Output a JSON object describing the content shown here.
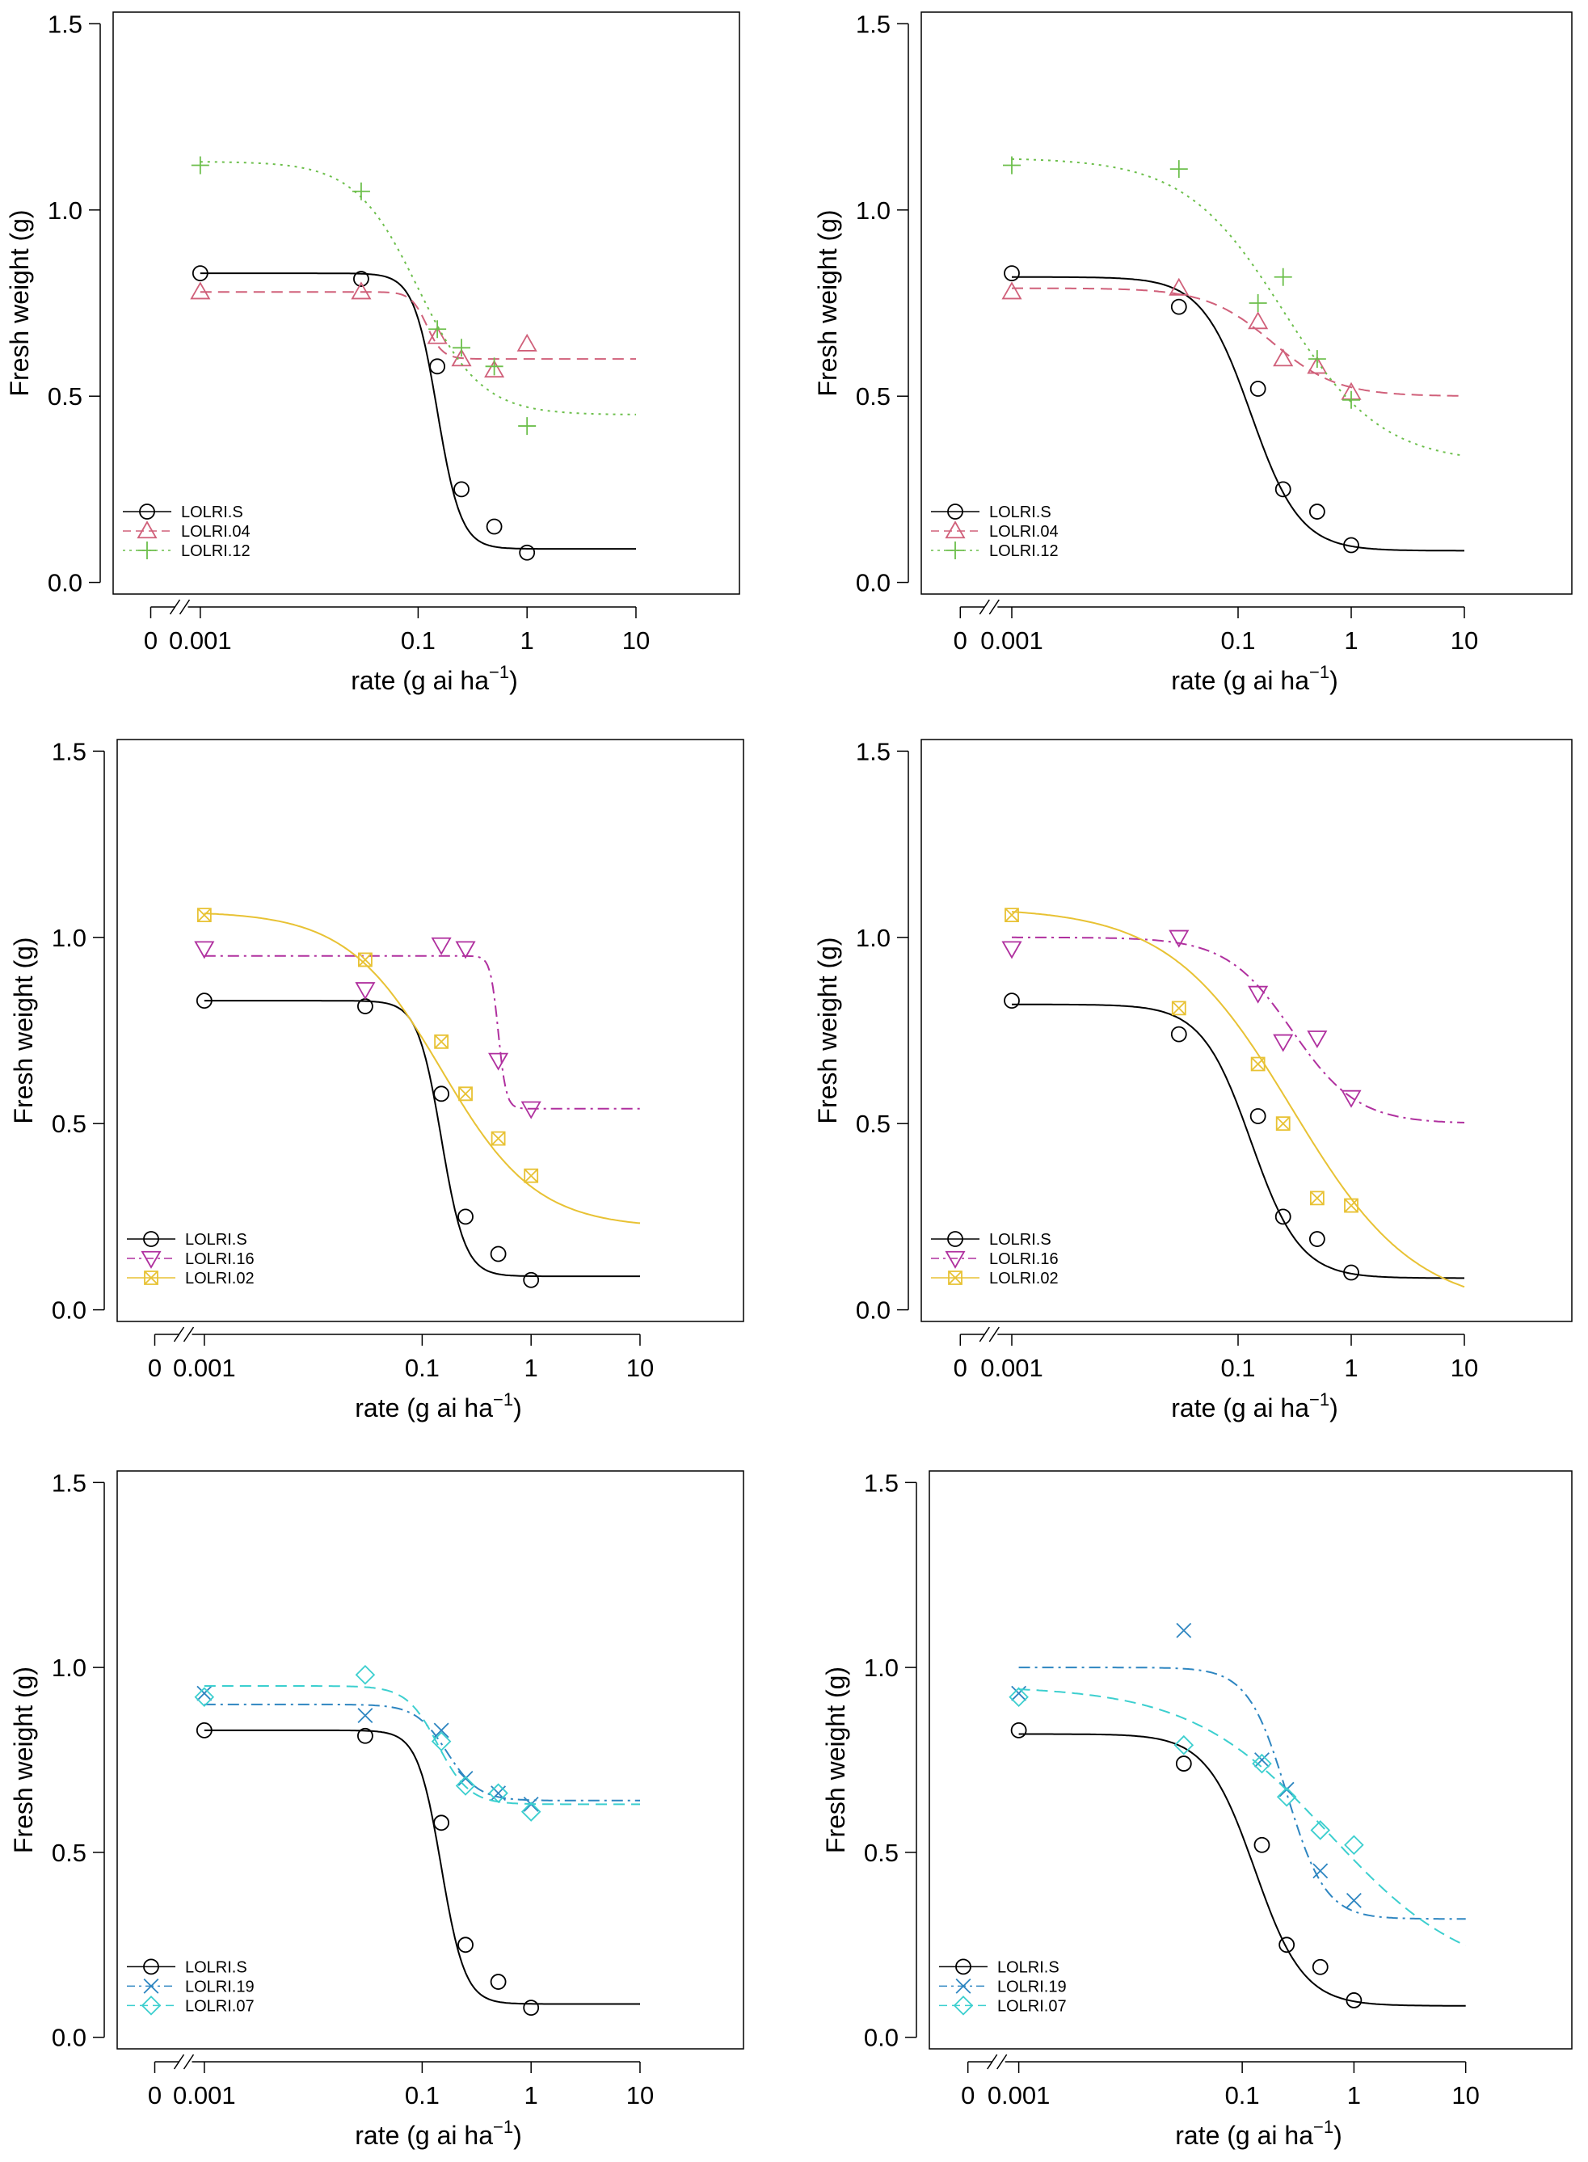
{
  "chart_data": [
    {
      "type": "line",
      "panel": "top-left",
      "xlabel": "rate (g ai ha",
      "xlabel_sup": "−1",
      "xlabel_close": ")",
      "ylabel": "Fresh weight (g)",
      "x_scale": "log (with axis break to 0)",
      "x_ticks": [
        "0",
        "0.001",
        "0.1",
        "1",
        "10"
      ],
      "y_ticks": [
        "0.0",
        "0.5",
        "1.0",
        "1.5"
      ],
      "ylim": [
        0,
        1.5
      ],
      "legend_position": "bottom-left",
      "series": [
        {
          "name": "LOLRI.S",
          "color": "#000000",
          "marker": "circle",
          "line": "solid",
          "x": [
            0.001,
            0.03,
            0.15,
            0.25,
            0.5,
            1
          ],
          "y": [
            0.83,
            0.815,
            0.58,
            0.25,
            0.15,
            0.08
          ],
          "fit": {
            "c": 0.09,
            "d": 0.83,
            "b": 4.0,
            "e": 0.15
          }
        },
        {
          "name": "LOLRI.04",
          "color": "#d0607a",
          "marker": "triangle",
          "line": "dashed",
          "x": [
            0.001,
            0.03,
            0.15,
            0.25,
            0.5,
            1
          ],
          "y": [
            0.78,
            0.78,
            0.66,
            0.6,
            0.57,
            0.64
          ],
          "fit": {
            "c": 0.6,
            "d": 0.78,
            "b": 6.0,
            "e": 0.12
          }
        },
        {
          "name": "LOLRI.12",
          "color": "#6cbf4b",
          "marker": "plus",
          "line": "dotted",
          "x": [
            0.001,
            0.03,
            0.15,
            0.25,
            0.5,
            1
          ],
          "y": [
            1.12,
            1.05,
            0.68,
            0.63,
            0.58,
            0.42
          ],
          "fit": {
            "c": 0.45,
            "d": 1.13,
            "b": 1.5,
            "e": 0.1
          }
        }
      ]
    },
    {
      "type": "line",
      "panel": "top-right",
      "xlabel": "rate (g ai ha",
      "xlabel_sup": "−1",
      "xlabel_close": ")",
      "ylabel": "Fresh weight (g)",
      "x_scale": "log (with axis break to 0)",
      "x_ticks": [
        "0",
        "0.001",
        "0.1",
        "1",
        "10"
      ],
      "y_ticks": [
        "0.0",
        "0.5",
        "1.0",
        "1.5"
      ],
      "ylim": [
        0,
        1.5
      ],
      "legend_position": "bottom-left",
      "series": [
        {
          "name": "LOLRI.S",
          "color": "#000000",
          "marker": "circle",
          "line": "solid",
          "x": [
            0.001,
            0.03,
            0.15,
            0.25,
            0.5,
            1
          ],
          "y": [
            0.83,
            0.74,
            0.52,
            0.25,
            0.19,
            0.1
          ],
          "fit": {
            "c": 0.085,
            "d": 0.82,
            "b": 2.0,
            "e": 0.13
          }
        },
        {
          "name": "LOLRI.04",
          "color": "#d0607a",
          "marker": "triangle",
          "line": "dashed",
          "x": [
            0.001,
            0.03,
            0.15,
            0.25,
            0.5,
            1
          ],
          "y": [
            0.78,
            0.79,
            0.7,
            0.6,
            0.58,
            0.51
          ],
          "fit": {
            "c": 0.5,
            "d": 0.79,
            "b": 1.5,
            "e": 0.2
          }
        },
        {
          "name": "LOLRI.12",
          "color": "#6cbf4b",
          "marker": "plus",
          "line": "dotted",
          "x": [
            0.001,
            0.03,
            0.15,
            0.25,
            0.5,
            1
          ],
          "y": [
            1.12,
            1.11,
            0.75,
            0.82,
            0.6,
            0.49
          ],
          "fit": {
            "c": 0.32,
            "d": 1.14,
            "b": 1.0,
            "e": 0.25
          }
        }
      ]
    },
    {
      "type": "line",
      "panel": "middle-left",
      "xlabel": "rate (g ai ha",
      "xlabel_sup": "−1",
      "xlabel_close": ")",
      "ylabel": "Fresh weight (g)",
      "x_scale": "log (with axis break to 0)",
      "x_ticks": [
        "0",
        "0.001",
        "0.1",
        "1",
        "10"
      ],
      "y_ticks": [
        "0.0",
        "0.5",
        "1.0",
        "1.5"
      ],
      "ylim": [
        0,
        1.5
      ],
      "legend_position": "bottom-left",
      "series": [
        {
          "name": "LOLRI.S",
          "color": "#000000",
          "marker": "circle",
          "line": "solid",
          "x": [
            0.001,
            0.03,
            0.15,
            0.25,
            0.5,
            1
          ],
          "y": [
            0.83,
            0.815,
            0.58,
            0.25,
            0.15,
            0.08
          ],
          "fit": {
            "c": 0.09,
            "d": 0.83,
            "b": 4.0,
            "e": 0.15
          }
        },
        {
          "name": "LOLRI.16",
          "color": "#b0309f",
          "marker": "triangle-down",
          "line": "dotdash",
          "x": [
            0.001,
            0.03,
            0.15,
            0.25,
            0.5,
            1
          ],
          "y": [
            0.97,
            0.86,
            0.98,
            0.97,
            0.67,
            0.54
          ],
          "fit": {
            "c": 0.54,
            "d": 0.95,
            "b": 12.0,
            "e": 0.5
          }
        },
        {
          "name": "LOLRI.02",
          "color": "#e8c234",
          "marker": "square-x",
          "line": "solid",
          "x": [
            0.001,
            0.03,
            0.15,
            0.25,
            0.5,
            1
          ],
          "y": [
            1.06,
            0.94,
            0.72,
            0.58,
            0.46,
            0.36
          ],
          "fit": {
            "c": 0.22,
            "d": 1.07,
            "b": 1.0,
            "e": 0.15
          }
        }
      ]
    },
    {
      "type": "line",
      "panel": "middle-right",
      "xlabel": "rate (g ai ha",
      "xlabel_sup": "−1",
      "xlabel_close": ")",
      "ylabel": "Fresh weight (g)",
      "x_scale": "log (with axis break to 0)",
      "x_ticks": [
        "0",
        "0.001",
        "0.1",
        "1",
        "10"
      ],
      "y_ticks": [
        "0.0",
        "0.5",
        "1.0",
        "1.5"
      ],
      "ylim": [
        0,
        1.5
      ],
      "legend_position": "bottom-left",
      "series": [
        {
          "name": "LOLRI.S",
          "color": "#000000",
          "marker": "circle",
          "line": "solid",
          "x": [
            0.001,
            0.03,
            0.15,
            0.25,
            0.5,
            1
          ],
          "y": [
            0.83,
            0.74,
            0.52,
            0.25,
            0.19,
            0.1
          ],
          "fit": {
            "c": 0.085,
            "d": 0.82,
            "b": 2.0,
            "e": 0.13
          }
        },
        {
          "name": "LOLRI.16",
          "color": "#b0309f",
          "marker": "triangle-down",
          "line": "dotdash",
          "x": [
            0.001,
            0.03,
            0.15,
            0.25,
            0.5,
            1
          ],
          "y": [
            0.97,
            1.0,
            0.85,
            0.72,
            0.73,
            0.57
          ],
          "fit": {
            "c": 0.5,
            "d": 1.0,
            "b": 1.5,
            "e": 0.3
          }
        },
        {
          "name": "LOLRI.02",
          "color": "#e8c234",
          "marker": "square-x",
          "line": "solid",
          "x": [
            0.001,
            0.03,
            0.15,
            0.25,
            0.5,
            1
          ],
          "y": [
            1.06,
            0.81,
            0.66,
            0.5,
            0.3,
            0.28
          ],
          "fit": {
            "c": 0.0,
            "d": 1.08,
            "b": 0.8,
            "e": 0.3
          }
        }
      ]
    },
    {
      "type": "line",
      "panel": "bottom-left",
      "xlabel": "rate (g ai ha",
      "xlabel_sup": "−1",
      "xlabel_close": ")",
      "ylabel": "Fresh weight (g)",
      "x_scale": "log (with axis break to 0)",
      "x_ticks": [
        "0",
        "0.001",
        "0.1",
        "1",
        "10"
      ],
      "y_ticks": [
        "0.0",
        "0.5",
        "1.0",
        "1.5"
      ],
      "ylim": [
        0,
        1.5
      ],
      "legend_position": "bottom-left",
      "series": [
        {
          "name": "LOLRI.S",
          "color": "#000000",
          "marker": "circle",
          "line": "solid",
          "x": [
            0.001,
            0.03,
            0.15,
            0.25,
            0.5,
            1
          ],
          "y": [
            0.83,
            0.815,
            0.58,
            0.25,
            0.15,
            0.08
          ],
          "fit": {
            "c": 0.09,
            "d": 0.83,
            "b": 4.0,
            "e": 0.15
          }
        },
        {
          "name": "LOLRI.19",
          "color": "#2e86c1",
          "marker": "x",
          "line": "dotdash",
          "x": [
            0.001,
            0.03,
            0.15,
            0.25,
            0.5,
            1
          ],
          "y": [
            0.93,
            0.87,
            0.83,
            0.7,
            0.66,
            0.63
          ],
          "fit": {
            "c": 0.64,
            "d": 0.9,
            "b": 3.0,
            "e": 0.17
          }
        },
        {
          "name": "LOLRI.07",
          "color": "#3ccfcf",
          "marker": "diamond",
          "line": "dashed",
          "x": [
            0.001,
            0.03,
            0.15,
            0.25,
            0.5,
            1
          ],
          "y": [
            0.92,
            0.98,
            0.8,
            0.68,
            0.66,
            0.61
          ],
          "fit": {
            "c": 0.63,
            "d": 0.95,
            "b": 3.0,
            "e": 0.14
          }
        }
      ]
    },
    {
      "type": "line",
      "panel": "bottom-right",
      "xlabel": "rate (g ai ha",
      "xlabel_sup": "−1",
      "xlabel_close": ")",
      "ylabel": "Fresh weight (g)",
      "x_scale": "log (with axis break to 0)",
      "x_ticks": [
        "0",
        "0.001",
        "0.1",
        "1",
        "10"
      ],
      "y_ticks": [
        "0.0",
        "0.5",
        "1.0",
        "1.5"
      ],
      "ylim": [
        0,
        1.5
      ],
      "legend_position": "bottom-left",
      "series": [
        {
          "name": "LOLRI.S",
          "color": "#000000",
          "marker": "circle",
          "line": "solid",
          "x": [
            0.001,
            0.03,
            0.15,
            0.25,
            0.5,
            1
          ],
          "y": [
            0.83,
            0.74,
            0.52,
            0.25,
            0.19,
            0.1
          ],
          "fit": {
            "c": 0.085,
            "d": 0.82,
            "b": 2.0,
            "e": 0.13
          }
        },
        {
          "name": "LOLRI.19",
          "color": "#2e86c1",
          "marker": "x",
          "line": "dotdash",
          "x": [
            0.001,
            0.03,
            0.15,
            0.25,
            0.5,
            1
          ],
          "y": [
            0.93,
            1.1,
            0.75,
            0.67,
            0.45,
            0.37
          ],
          "fit": {
            "c": 0.32,
            "d": 1.0,
            "b": 2.5,
            "e": 0.25
          }
        },
        {
          "name": "LOLRI.07",
          "color": "#3ccfcf",
          "marker": "diamond",
          "line": "dashed",
          "x": [
            0.001,
            0.03,
            0.15,
            0.25,
            0.5,
            1
          ],
          "y": [
            0.92,
            0.79,
            0.74,
            0.65,
            0.56,
            0.52
          ],
          "fit": {
            "c": 0.15,
            "d": 0.95,
            "b": 0.7,
            "e": 0.6
          }
        }
      ]
    }
  ]
}
